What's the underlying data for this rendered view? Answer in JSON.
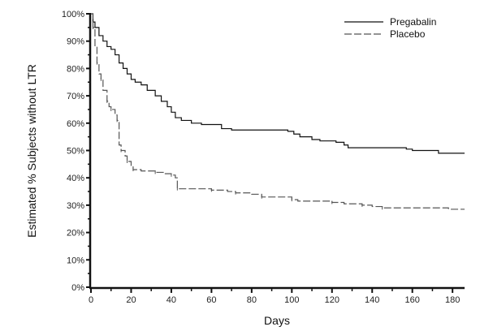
{
  "chart_data": {
    "type": "line",
    "subtype": "kaplan-meier step",
    "title": "",
    "xlabel": "Days",
    "ylabel": "Estimated % Subjects without LTR",
    "xlim": [
      0,
      186
    ],
    "ylim": [
      0,
      100
    ],
    "xticks": [
      0,
      20,
      40,
      60,
      80,
      100,
      120,
      140,
      160,
      180
    ],
    "yticks": [
      0,
      10,
      20,
      30,
      40,
      50,
      60,
      70,
      80,
      90,
      100
    ],
    "ytick_labels": [
      "0%",
      "10%",
      "20%",
      "30%",
      "40%",
      "50%",
      "60%",
      "70%",
      "80%",
      "90%",
      "100%"
    ],
    "grid": false,
    "legend_position": "top-right",
    "series": [
      {
        "name": "Pregabalin",
        "style": "solid",
        "color": "#111111",
        "x": [
          0,
          1,
          2,
          4,
          6,
          8,
          10,
          12,
          14,
          16,
          18,
          20,
          22,
          25,
          28,
          32,
          35,
          38,
          40,
          42,
          45,
          50,
          55,
          65,
          70,
          85,
          98,
          101,
          104,
          110,
          114,
          122,
          126,
          128,
          143,
          157,
          160,
          173,
          186
        ],
        "y": [
          100,
          97,
          95,
          92,
          90,
          88,
          87,
          85,
          82,
          80,
          78,
          76,
          75,
          74,
          72,
          70,
          68,
          66,
          64,
          62,
          61,
          60,
          59.5,
          58,
          57.5,
          57.5,
          57,
          56,
          55,
          54,
          53.5,
          53,
          52,
          51,
          51,
          50.5,
          50,
          49,
          49
        ]
      },
      {
        "name": "Placebo",
        "style": "dashed",
        "color": "#555555",
        "x": [
          0,
          1,
          2,
          3,
          4,
          5,
          6,
          8,
          9,
          10,
          12,
          13,
          14,
          15,
          17,
          18,
          20,
          21,
          25,
          32,
          36,
          40,
          42,
          43,
          50,
          60,
          68,
          72,
          80,
          85,
          98,
          100,
          103,
          120,
          126,
          135,
          140,
          145,
          178,
          186
        ],
        "y": [
          100,
          95,
          88,
          82,
          78,
          76,
          72,
          68,
          66,
          65,
          63,
          61,
          52,
          50,
          48,
          46,
          44,
          43,
          42.5,
          42,
          41.5,
          41,
          40,
          36,
          36,
          35.5,
          35,
          34.5,
          34,
          33,
          33,
          32,
          31.5,
          31,
          30.5,
          30,
          29.5,
          29,
          28.5,
          28.5
        ]
      }
    ]
  }
}
